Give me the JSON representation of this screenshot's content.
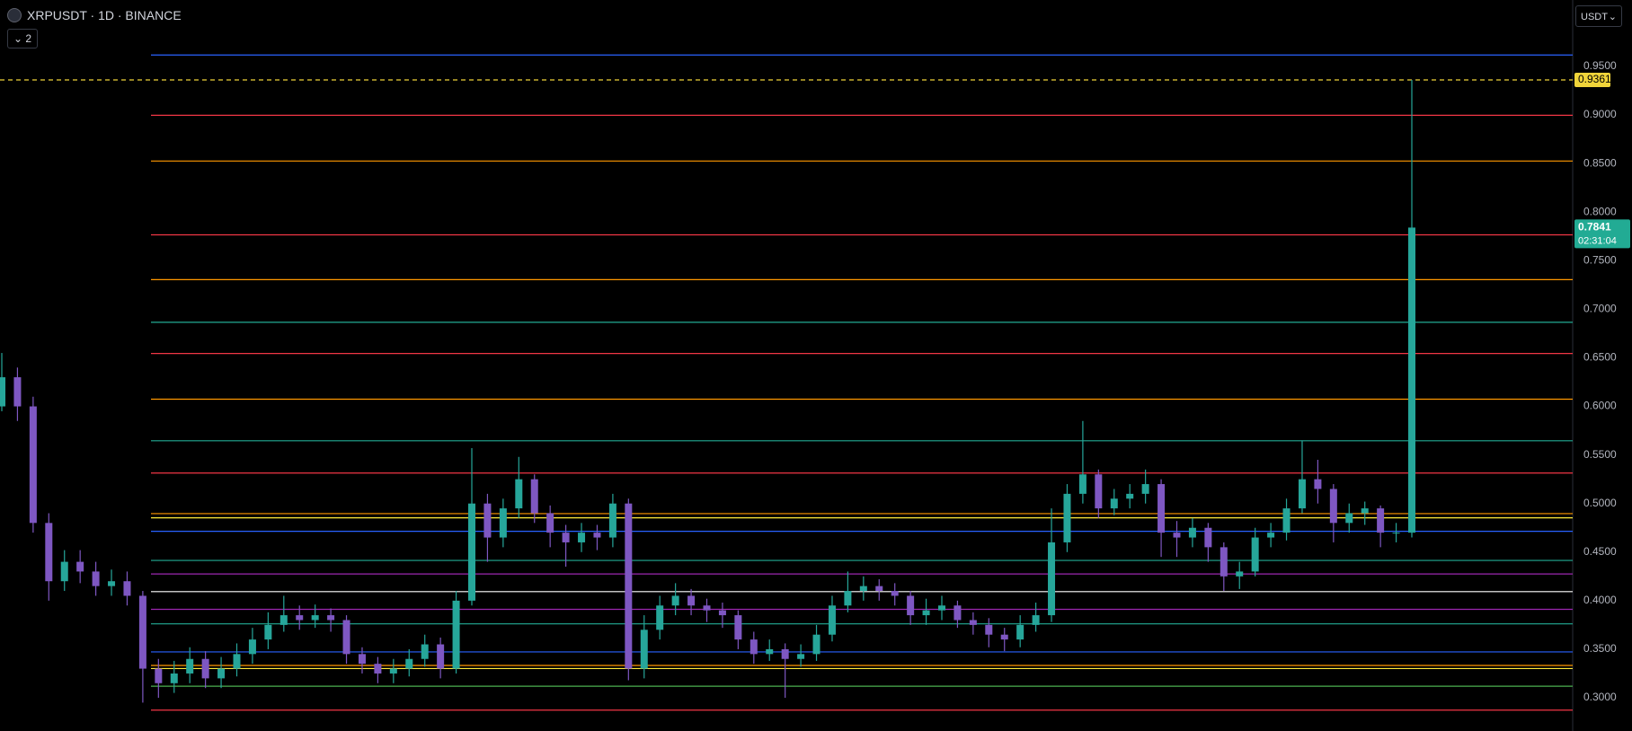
{
  "chart_data": {
    "type": "candlestick",
    "symbol": "XRPUSDT · 1D · BINANCE",
    "indicator_count": "2",
    "currency": "USDT",
    "up_color": "#26a69a",
    "down_color": "#7e57c2",
    "ylim": [
      0.2658,
      1.0184
    ],
    "yticks": [
      {
        "value": 0.3,
        "label": "0.3000"
      },
      {
        "value": 0.35,
        "label": "0.3500"
      },
      {
        "value": 0.4,
        "label": "0.4000"
      },
      {
        "value": 0.45,
        "label": "0.4500"
      },
      {
        "value": 0.5,
        "label": "0.5000"
      },
      {
        "value": 0.55,
        "label": "0.5500"
      },
      {
        "value": 0.6,
        "label": "0.6000"
      },
      {
        "value": 0.65,
        "label": "0.6500"
      },
      {
        "value": 0.7,
        "label": "0.7000"
      },
      {
        "value": 0.75,
        "label": "0.7500"
      },
      {
        "value": 0.8,
        "label": "0.8000"
      },
      {
        "value": 0.85,
        "label": "0.8500"
      },
      {
        "value": 0.9,
        "label": "0.9000"
      },
      {
        "value": 0.95,
        "label": "0.9500"
      }
    ],
    "open": [
      0.6,
      0.63,
      0.6,
      0.48,
      0.42,
      0.44,
      0.43,
      0.415,
      0.42,
      0.405,
      0.33,
      0.315,
      0.325,
      0.34,
      0.32,
      0.33,
      0.345,
      0.36,
      0.375,
      0.385,
      0.38,
      0.385,
      0.38,
      0.345,
      0.335,
      0.325,
      0.33,
      0.34,
      0.355,
      0.33,
      0.4,
      0.5,
      0.465,
      0.495,
      0.525,
      0.49,
      0.47,
      0.46,
      0.47,
      0.465,
      0.5,
      0.33,
      0.37,
      0.395,
      0.405,
      0.395,
      0.39,
      0.385,
      0.36,
      0.345,
      0.35,
      0.34,
      0.345,
      0.365,
      0.395,
      0.41,
      0.415,
      0.41,
      0.405,
      0.385,
      0.39,
      0.395,
      0.38,
      0.375,
      0.365,
      0.36,
      0.375,
      0.385,
      0.46,
      0.51,
      0.53,
      0.495,
      0.505,
      0.51,
      0.52,
      0.47,
      0.465,
      0.475,
      0.455,
      0.425,
      0.43,
      0.465,
      0.47,
      0.495,
      0.525,
      0.515,
      0.48,
      0.49,
      0.495,
      0.47,
      0.47
    ],
    "high": [
      0.655,
      0.64,
      0.61,
      0.49,
      0.452,
      0.452,
      0.44,
      0.432,
      0.43,
      0.41,
      0.34,
      0.338,
      0.352,
      0.348,
      0.342,
      0.356,
      0.372,
      0.388,
      0.405,
      0.395,
      0.396,
      0.392,
      0.385,
      0.352,
      0.342,
      0.34,
      0.35,
      0.365,
      0.362,
      0.41,
      0.557,
      0.51,
      0.505,
      0.548,
      0.53,
      0.498,
      0.478,
      0.48,
      0.478,
      0.51,
      0.505,
      0.385,
      0.405,
      0.418,
      0.412,
      0.402,
      0.398,
      0.39,
      0.368,
      0.36,
      0.356,
      0.355,
      0.375,
      0.405,
      0.43,
      0.425,
      0.422,
      0.418,
      0.41,
      0.402,
      0.405,
      0.4,
      0.388,
      0.382,
      0.372,
      0.385,
      0.398,
      0.495,
      0.52,
      0.585,
      0.535,
      0.515,
      0.52,
      0.535,
      0.525,
      0.482,
      0.485,
      0.48,
      0.46,
      0.44,
      0.475,
      0.48,
      0.505,
      0.565,
      0.545,
      0.52,
      0.5,
      0.502,
      0.498,
      0.48,
      0.9361
    ],
    "low": [
      0.595,
      0.585,
      0.47,
      0.4,
      0.41,
      0.418,
      0.405,
      0.405,
      0.395,
      0.295,
      0.3,
      0.305,
      0.315,
      0.31,
      0.31,
      0.322,
      0.335,
      0.35,
      0.368,
      0.37,
      0.372,
      0.368,
      0.335,
      0.325,
      0.315,
      0.315,
      0.322,
      0.332,
      0.32,
      0.325,
      0.395,
      0.44,
      0.455,
      0.485,
      0.48,
      0.455,
      0.435,
      0.45,
      0.452,
      0.455,
      0.318,
      0.32,
      0.36,
      0.385,
      0.385,
      0.378,
      0.372,
      0.35,
      0.335,
      0.338,
      0.3,
      0.332,
      0.338,
      0.358,
      0.388,
      0.4,
      0.4,
      0.395,
      0.375,
      0.375,
      0.38,
      0.372,
      0.365,
      0.352,
      0.348,
      0.352,
      0.368,
      0.378,
      0.45,
      0.5,
      0.485,
      0.488,
      0.495,
      0.5,
      0.445,
      0.445,
      0.455,
      0.44,
      0.41,
      0.412,
      0.425,
      0.455,
      0.462,
      0.49,
      0.5,
      0.46,
      0.47,
      0.478,
      0.455,
      0.46,
      0.465
    ],
    "close": [
      0.63,
      0.6,
      0.48,
      0.42,
      0.44,
      0.43,
      0.415,
      0.42,
      0.405,
      0.33,
      0.315,
      0.325,
      0.34,
      0.32,
      0.33,
      0.345,
      0.36,
      0.375,
      0.385,
      0.38,
      0.385,
      0.38,
      0.345,
      0.335,
      0.325,
      0.33,
      0.34,
      0.355,
      0.33,
      0.4,
      0.5,
      0.465,
      0.495,
      0.525,
      0.49,
      0.47,
      0.46,
      0.47,
      0.465,
      0.5,
      0.33,
      0.37,
      0.395,
      0.405,
      0.395,
      0.39,
      0.385,
      0.36,
      0.345,
      0.35,
      0.34,
      0.345,
      0.365,
      0.395,
      0.41,
      0.415,
      0.41,
      0.405,
      0.385,
      0.39,
      0.395,
      0.38,
      0.375,
      0.365,
      0.36,
      0.375,
      0.385,
      0.46,
      0.51,
      0.53,
      0.495,
      0.505,
      0.51,
      0.52,
      0.47,
      0.465,
      0.475,
      0.455,
      0.425,
      0.43,
      0.465,
      0.47,
      0.495,
      0.525,
      0.515,
      0.48,
      0.49,
      0.495,
      0.47,
      0.47,
      0.7841
    ],
    "levels": [
      {
        "value": 0.9618,
        "color": "#2962ff"
      },
      {
        "value": 0.8997,
        "color": "#f23645"
      },
      {
        "value": 0.8526,
        "color": "#ff9800"
      },
      {
        "value": 0.7766,
        "color": "#f23645"
      },
      {
        "value": 0.7305,
        "color": "#ff9800"
      },
      {
        "value": 0.6866,
        "color": "#22ab94"
      },
      {
        "value": 0.6545,
        "color": "#f23645"
      },
      {
        "value": 0.6074,
        "color": "#ff9800"
      },
      {
        "value": 0.5646,
        "color": "#22ab94"
      },
      {
        "value": 0.5314,
        "color": "#f23645"
      },
      {
        "value": 0.4896,
        "color": "#ff9800"
      },
      {
        "value": 0.4853,
        "color": "#ffeb3b"
      },
      {
        "value": 0.4714,
        "color": "#2962ff"
      },
      {
        "value": 0.4414,
        "color": "#22ab94"
      },
      {
        "value": 0.4275,
        "color": "#9c27b0"
      },
      {
        "value": 0.4093,
        "color": "#ffffff"
      },
      {
        "value": 0.3911,
        "color": "#9c27b0"
      },
      {
        "value": 0.3761,
        "color": "#22ab94"
      },
      {
        "value": 0.3472,
        "color": "#2962ff"
      },
      {
        "value": 0.3333,
        "color": "#ff9800"
      },
      {
        "value": 0.3301,
        "color": "#ffeb3b"
      },
      {
        "value": 0.3119,
        "color": "#4caf50"
      },
      {
        "value": 0.2873,
        "color": "#f23645"
      }
    ],
    "high_marker": {
      "value": 0.9361,
      "color": "#f0d43a"
    },
    "current_price": {
      "value": 0.7841,
      "countdown": "02:31:04",
      "color": "#22ab94"
    }
  }
}
